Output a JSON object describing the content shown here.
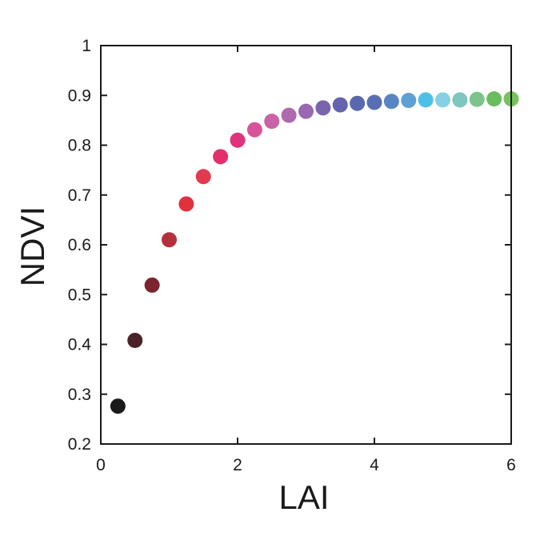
{
  "chart_data": {
    "type": "scatter",
    "xlabel": "LAI",
    "ylabel": "NDVI",
    "xlim": [
      0,
      6
    ],
    "ylim": [
      0.2,
      1
    ],
    "x_ticks": [
      0,
      2,
      4,
      6
    ],
    "y_ticks": [
      0.2,
      0.3,
      0.4,
      0.5,
      0.6,
      0.7,
      0.8,
      0.9,
      1
    ],
    "x_tick_labels": [
      "0",
      "2",
      "4",
      "6"
    ],
    "y_tick_labels": [
      "0.2",
      "0.3",
      "0.4",
      "0.5",
      "0.6",
      "0.7",
      "0.8",
      "0.9",
      "1"
    ],
    "grid": false,
    "points": [
      {
        "x": 0.25,
        "y": 0.276,
        "color": "#1a1a1a"
      },
      {
        "x": 0.5,
        "y": 0.408,
        "color": "#4a2228"
      },
      {
        "x": 0.75,
        "y": 0.519,
        "color": "#7c2430"
      },
      {
        "x": 1.0,
        "y": 0.61,
        "color": "#b3313b"
      },
      {
        "x": 1.25,
        "y": 0.682,
        "color": "#e0323c"
      },
      {
        "x": 1.5,
        "y": 0.737,
        "color": "#e23a50"
      },
      {
        "x": 1.75,
        "y": 0.777,
        "color": "#e42f6a"
      },
      {
        "x": 2.0,
        "y": 0.81,
        "color": "#e0337c"
      },
      {
        "x": 2.25,
        "y": 0.831,
        "color": "#d8539a"
      },
      {
        "x": 2.5,
        "y": 0.848,
        "color": "#c962a6"
      },
      {
        "x": 2.75,
        "y": 0.86,
        "color": "#b068ae"
      },
      {
        "x": 3.0,
        "y": 0.868,
        "color": "#9868b0"
      },
      {
        "x": 3.25,
        "y": 0.875,
        "color": "#7865ad"
      },
      {
        "x": 3.5,
        "y": 0.881,
        "color": "#6463ae"
      },
      {
        "x": 3.75,
        "y": 0.884,
        "color": "#5a68b0"
      },
      {
        "x": 4.0,
        "y": 0.886,
        "color": "#5770b4"
      },
      {
        "x": 4.25,
        "y": 0.888,
        "color": "#5a85c3"
      },
      {
        "x": 4.5,
        "y": 0.89,
        "color": "#5e9fd4"
      },
      {
        "x": 4.75,
        "y": 0.891,
        "color": "#4ec0e8"
      },
      {
        "x": 5.0,
        "y": 0.891,
        "color": "#86cfe4"
      },
      {
        "x": 5.25,
        "y": 0.891,
        "color": "#7ec6c0"
      },
      {
        "x": 5.5,
        "y": 0.892,
        "color": "#7cc48a"
      },
      {
        "x": 5.75,
        "y": 0.893,
        "color": "#6abd5e"
      },
      {
        "x": 6.0,
        "y": 0.893,
        "color": "#78c25e"
      }
    ]
  }
}
